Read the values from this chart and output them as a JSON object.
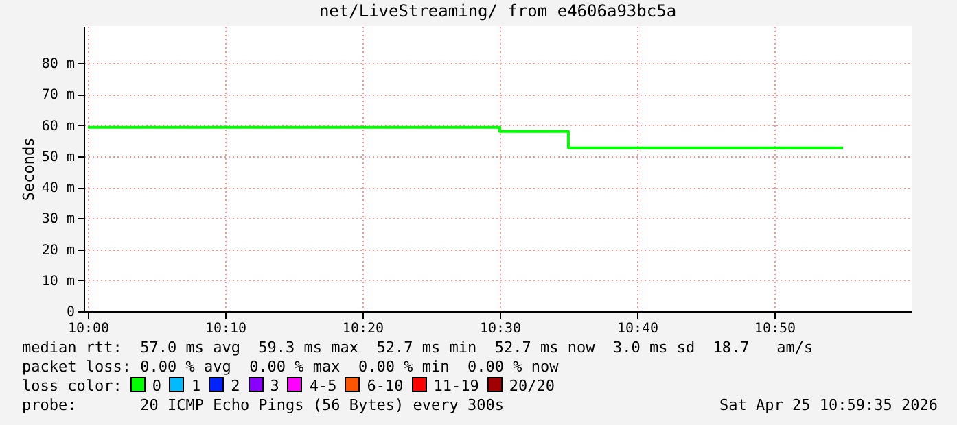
{
  "chart_data": {
    "type": "step",
    "title": "net/LiveStreaming/ from e4606a93bc5a",
    "ylabel": "Seconds",
    "x": [
      10,
      10.5,
      10.5833,
      10.9167
    ],
    "series": [
      {
        "color": "#00ff00",
        "values": [
          59.3,
          58.0,
          52.7,
          52.7
        ]
      }
    ],
    "xlim": [
      9.995,
      11.0
    ],
    "xticks": [
      {
        "value": 10,
        "label": "10:00"
      },
      {
        "value": 10.1667,
        "label": "10:10"
      },
      {
        "value": 10.3333,
        "label": "10:20"
      },
      {
        "value": 10.5,
        "label": "10:30"
      },
      {
        "value": 10.6667,
        "label": "10:40"
      },
      {
        "value": 10.8333,
        "label": "10:50"
      }
    ],
    "ylim": [
      0,
      92
    ],
    "yticks": [
      0,
      {
        "value": 10,
        "label": "10 m"
      },
      {
        "value": 20,
        "label": "20 m"
      },
      {
        "value": 30,
        "label": "30 m"
      },
      {
        "value": 40,
        "label": "40 m"
      },
      {
        "value": 50,
        "label": "50 m"
      },
      {
        "value": 60,
        "label": "60 m"
      },
      {
        "value": 70,
        "label": "70 m"
      },
      {
        "value": 80,
        "label": "80 m"
      }
    ],
    "grid": true,
    "marker": "none",
    "line_style": "solid",
    "annotations": [
      "median rtt:  57.0 ms avg  59.3 ms max  52.7 ms min  52.7 ms now  3.0 ms sd  18.7   am/s",
      "packet loss: 0.00 % avg  0.00 % max  0.00 % min  0.00 % now",
      "loss color:",
      "0",
      "1",
      "2",
      "3",
      "4-5",
      "6-10",
      "11-19",
      "20/20",
      "probe:       20 ICMP Echo Pings (56 Bytes) every 300s",
      "Sat Apr 25 10:59:35 2026"
    ]
  }
}
